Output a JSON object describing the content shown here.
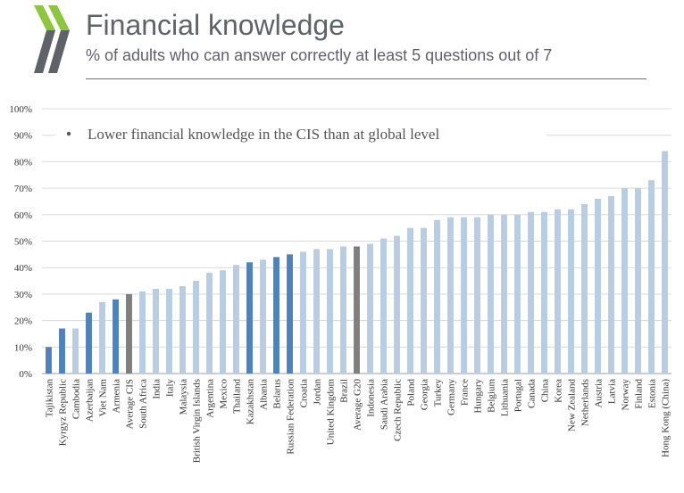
{
  "header": {
    "title": "Financial knowledge",
    "subtitle": "% of adults who can answer correctly at least 5 questions out of 7"
  },
  "colors": {
    "global": "#b8cce4",
    "cis": "#4f81bd",
    "average": "#7f7f7f",
    "logo_green": "#8cc63f",
    "logo_gray": "#5f6369"
  },
  "chart_data": {
    "type": "bar",
    "title": "",
    "xlabel": "",
    "ylabel": "",
    "ylim": [
      0,
      100
    ],
    "yticks": [
      "0%",
      "10%",
      "20%",
      "30%",
      "40%",
      "50%",
      "60%",
      "70%",
      "80%",
      "90%",
      "100%"
    ],
    "grid": true,
    "annotation": "Lower financial knowledge in the CIS than at global level",
    "categories": [
      "Tajikistan",
      "Kyrgyz Republic",
      "Cambodia",
      "Azerbaijan",
      "Viet Nam",
      "Armenia",
      "Average CIS",
      "South Africa",
      "India",
      "Italy",
      "Malaysia",
      "British Virgin Islands",
      "Argentina",
      "Mexico",
      "Thailand",
      "Kazakhstan",
      "Albania",
      "Belarus",
      "Russian Federation",
      "Croatia",
      "Jordan",
      "United Kingdom",
      "Brazil",
      "Average G20",
      "Indonesia",
      "Saudi Arabia",
      "Czech Republic",
      "Poland",
      "Georgia",
      "Turkey",
      "Germany",
      "France",
      "Hungary",
      "Belgium",
      "Lithuania",
      "Portugal",
      "Canada",
      "China",
      "Korea",
      "New Zealand",
      "Netherlands",
      "Austria",
      "Latvia",
      "Norway",
      "Finland",
      "Estonia",
      "Hong Kong (China)"
    ],
    "values": [
      10,
      17,
      17,
      23,
      27,
      28,
      30,
      31,
      32,
      32,
      33,
      35,
      38,
      39,
      41,
      42,
      43,
      44,
      45,
      46,
      47,
      47,
      48,
      48,
      49,
      51,
      52,
      55,
      55,
      58,
      59,
      59,
      59,
      60,
      60,
      60,
      61,
      61,
      62,
      62,
      64,
      66,
      67,
      70,
      70,
      73,
      84
    ],
    "groups": [
      "cis",
      "cis",
      "global",
      "cis",
      "global",
      "cis",
      "average",
      "global",
      "global",
      "global",
      "global",
      "global",
      "global",
      "global",
      "global",
      "cis",
      "global",
      "cis",
      "cis",
      "global",
      "global",
      "global",
      "global",
      "average",
      "global",
      "global",
      "global",
      "global",
      "global",
      "global",
      "global",
      "global",
      "global",
      "global",
      "global",
      "global",
      "global",
      "global",
      "global",
      "global",
      "global",
      "global",
      "global",
      "global",
      "global",
      "global",
      "global"
    ]
  }
}
